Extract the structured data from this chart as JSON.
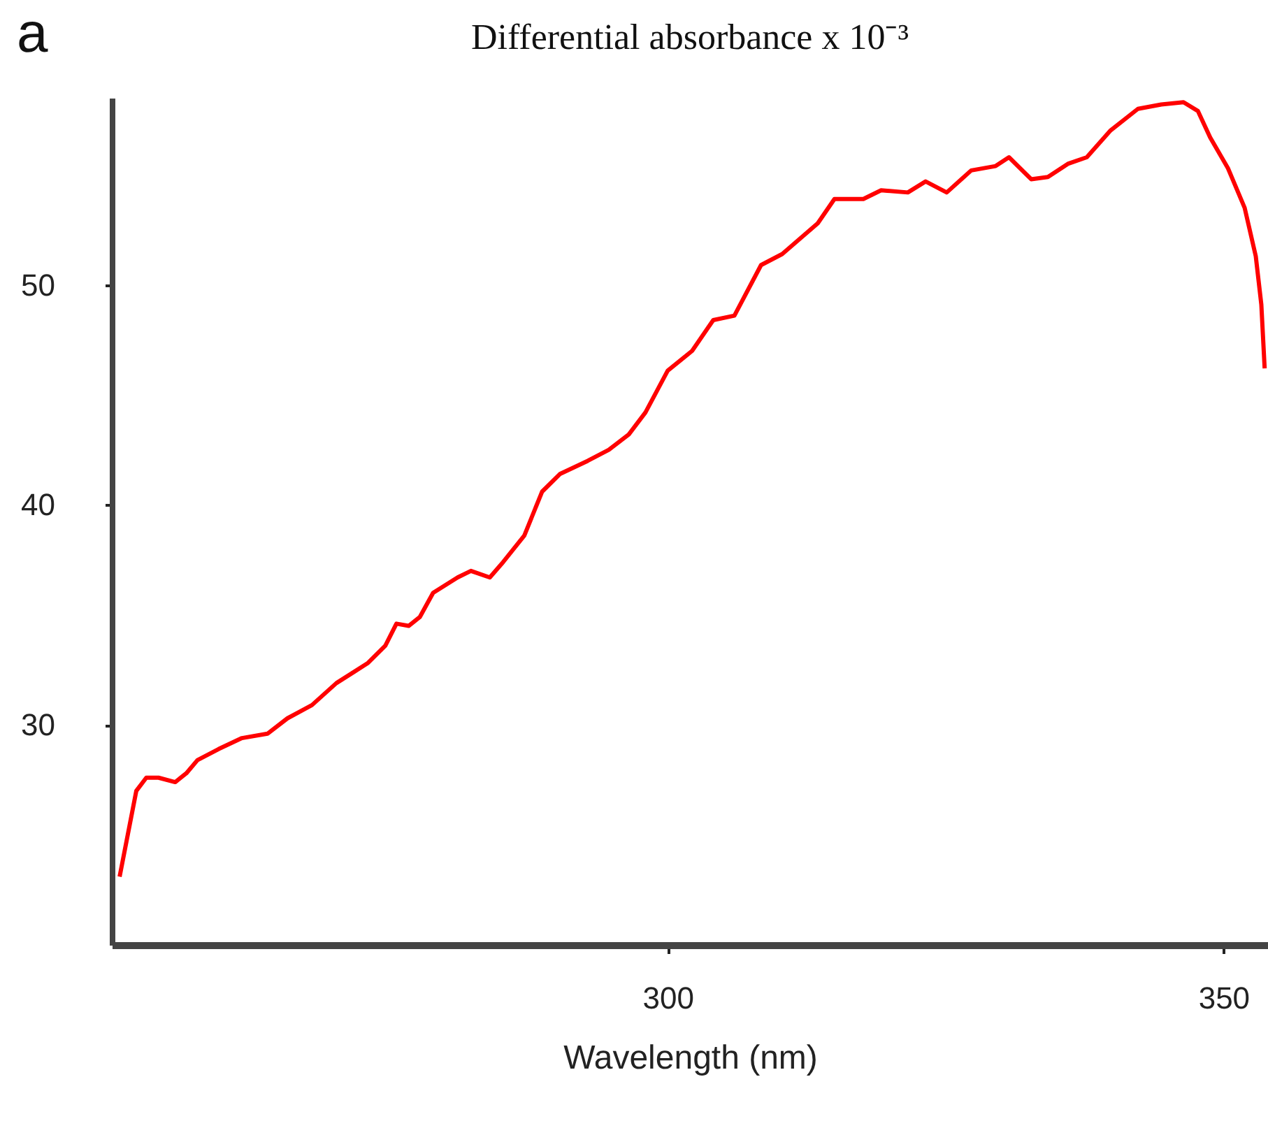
{
  "chart_data": {
    "type": "line",
    "title": "Differential absorbance x 10⁻³",
    "xlabel": "Wavelength (nm)",
    "annotations": [
      "a"
    ],
    "x": [
      250.7,
      252.2,
      253.1,
      254.2,
      255.7,
      256.7,
      257.7,
      259.6,
      261.7,
      264.0,
      265.8,
      268.0,
      270.2,
      273.0,
      274.6,
      275.6,
      276.7,
      277.7,
      278.9,
      281.1,
      282.3,
      284.0,
      285.2,
      287.1,
      288.7,
      290.3,
      292.8,
      294.7,
      296.5,
      298.0,
      300.0,
      302.2,
      304.1,
      306.0,
      308.4,
      310.3,
      313.5,
      315.0,
      317.6,
      319.2,
      321.6,
      323.2,
      325.1,
      327.3,
      329.5,
      330.7,
      332.7,
      334.2,
      336.0,
      337.7,
      339.8,
      342.3,
      344.4,
      346.4,
      347.7,
      348.8,
      350.4,
      351.9,
      352.9,
      353.4,
      353.7
    ],
    "series": [
      {
        "color": "#ff0000",
        "values": [
          23.1,
          27.0,
          27.6,
          27.6,
          27.4,
          27.8,
          28.4,
          28.9,
          29.4,
          29.6,
          30.3,
          30.9,
          31.9,
          32.8,
          33.6,
          34.6,
          34.5,
          34.9,
          36.0,
          36.7,
          37.0,
          36.7,
          37.4,
          38.6,
          40.6,
          41.4,
          42.0,
          42.5,
          43.2,
          44.2,
          46.1,
          47.0,
          48.4,
          48.6,
          50.9,
          51.4,
          52.8,
          53.9,
          53.9,
          54.3,
          54.2,
          54.7,
          54.2,
          55.2,
          55.4,
          55.8,
          54.8,
          54.9,
          55.5,
          55.8,
          57.0,
          58.0,
          58.2,
          58.3,
          57.9,
          56.7,
          55.3,
          53.5,
          51.3,
          49.1,
          46.2
        ]
      }
    ],
    "xlim": [
      250,
      354
    ],
    "ylim": [
      20,
      58.5
    ],
    "xticks": [
      300,
      350
    ],
    "yticks": [
      30,
      40,
      50
    ]
  }
}
